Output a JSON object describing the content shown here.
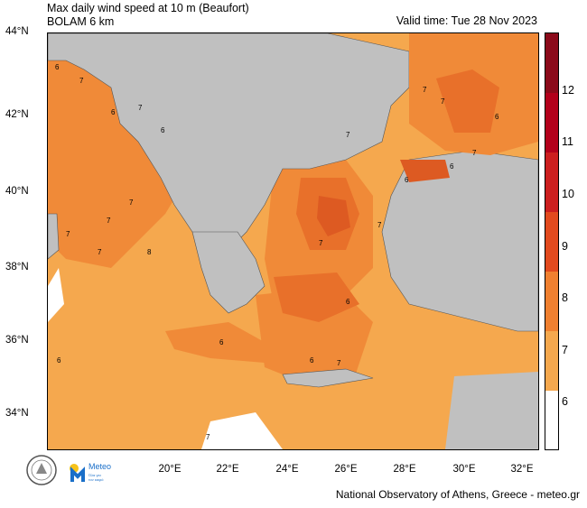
{
  "header": {
    "title_line1": "Max daily wind speed at 10 m (Beaufort)",
    "title_line2": "BOLAM 6 km",
    "valid_time": "Valid time: Tue 28 Nov 2023"
  },
  "axes": {
    "y_labels": [
      "44°N",
      "42°N",
      "40°N",
      "38°N",
      "36°N",
      "34°N"
    ],
    "x_labels": [
      "20°E",
      "22°E",
      "24°E",
      "26°E",
      "28°E",
      "30°E",
      "32°E"
    ]
  },
  "colorbar": {
    "labels": [
      "12",
      "11",
      "10",
      "9",
      "8",
      "7",
      "6"
    ],
    "colors": [
      "#8b0a1a",
      "#b3001b",
      "#cc1f1f",
      "#e24a1e",
      "#f08030",
      "#f5a84e",
      "#ffffff"
    ]
  },
  "map_labels": [
    "6",
    "7",
    "6",
    "7",
    "6",
    "7",
    "7",
    "7",
    "7",
    "8",
    "7",
    "7",
    "6",
    "7",
    "6",
    "6",
    "7",
    "6",
    "7",
    "7",
    "6",
    "6",
    "7",
    "6",
    "7"
  ],
  "logos": {
    "meteo_name": "Meteo",
    "meteo_tagline": "Όλα για\nτον καιρό"
  },
  "footer": {
    "credit": "National Observatory of Athens, Greece - meteo.gr"
  },
  "colors": {
    "land": "#c0c0c0",
    "level6": "#f5a84e",
    "level7": "#f08a38",
    "level8": "#e8702a",
    "level9": "#dd5a22"
  }
}
